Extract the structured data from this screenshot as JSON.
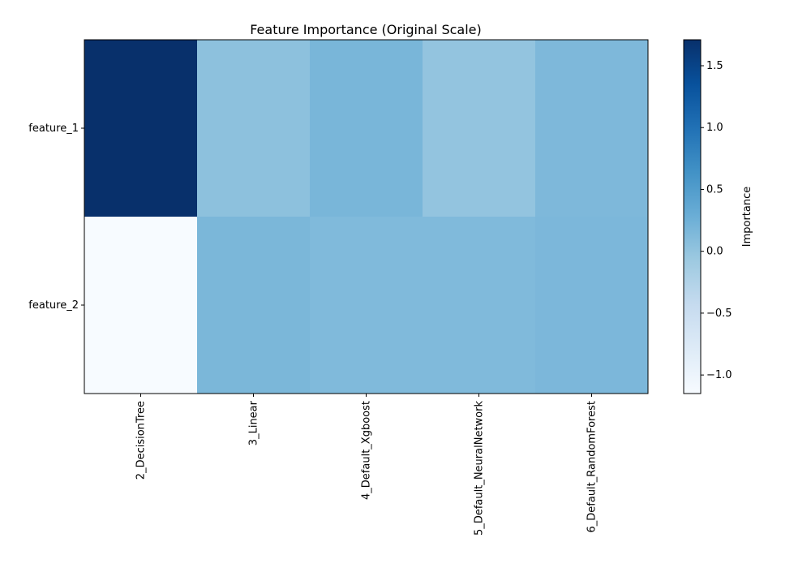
{
  "chart_data": {
    "type": "heatmap",
    "title": "Feature Importance (Original Scale)",
    "xlabel": "",
    "ylabel": "",
    "x_categories": [
      "2_DecisionTree",
      "3_Linear",
      "4_Default_Xgboost",
      "5_Default_NeuralNetwork",
      "6_Default_RandomForest"
    ],
    "y_categories": [
      "feature_1",
      "feature_2"
    ],
    "values": [
      [
        1.71,
        0.04,
        0.18,
        0.0,
        0.15
      ],
      [
        -1.15,
        0.17,
        0.13,
        0.13,
        0.16
      ]
    ],
    "colorbar": {
      "label": "Importance",
      "colormap": "Blues",
      "vmin": -1.15,
      "vmax": 1.71,
      "ticks": [
        -1.0,
        -0.5,
        0.0,
        0.5,
        1.0,
        1.5
      ],
      "tick_labels": [
        "−1.0",
        "−0.5",
        "0.0",
        "0.5",
        "1.0",
        "1.5"
      ]
    },
    "grid": false
  }
}
